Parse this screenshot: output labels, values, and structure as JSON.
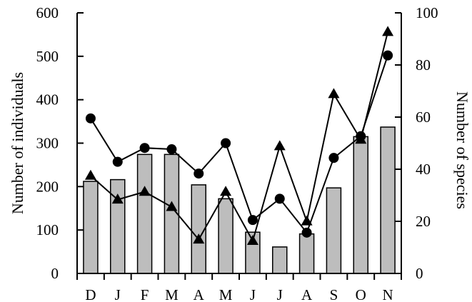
{
  "chart_data": {
    "type": "bar",
    "categories": [
      "D",
      "J",
      "F",
      "M",
      "A",
      "M",
      "J",
      "J",
      "A",
      "S",
      "O",
      "N"
    ],
    "left_axis": {
      "label": "Number of individuals",
      "ylim": [
        0,
        600
      ],
      "ticks": [
        "0",
        "100",
        "200",
        "300",
        "400",
        "500",
        "600"
      ]
    },
    "right_axis": {
      "label": "Number of species",
      "ylim": [
        0,
        100
      ],
      "ticks": [
        "0",
        "20",
        "40",
        "60",
        "80",
        "100"
      ]
    },
    "series": [
      {
        "marker": "bar",
        "axis": "left",
        "color": "#bdbdbd",
        "values": [
          212,
          216,
          274,
          274,
          204,
          172,
          95,
          61,
          91,
          197,
          315,
          337
        ]
      },
      {
        "marker": "circle",
        "axis": "left",
        "color": "#000000",
        "values": [
          357,
          257,
          289,
          286,
          230,
          300,
          123,
          172,
          94,
          266,
          316,
          502
        ]
      },
      {
        "marker": "triangle",
        "axis": "left",
        "color": "#000000",
        "values": [
          225,
          170,
          188,
          153,
          78,
          188,
          75,
          293,
          120,
          413,
          308,
          556
        ]
      }
    ],
    "legend": "none",
    "grid": false
  }
}
